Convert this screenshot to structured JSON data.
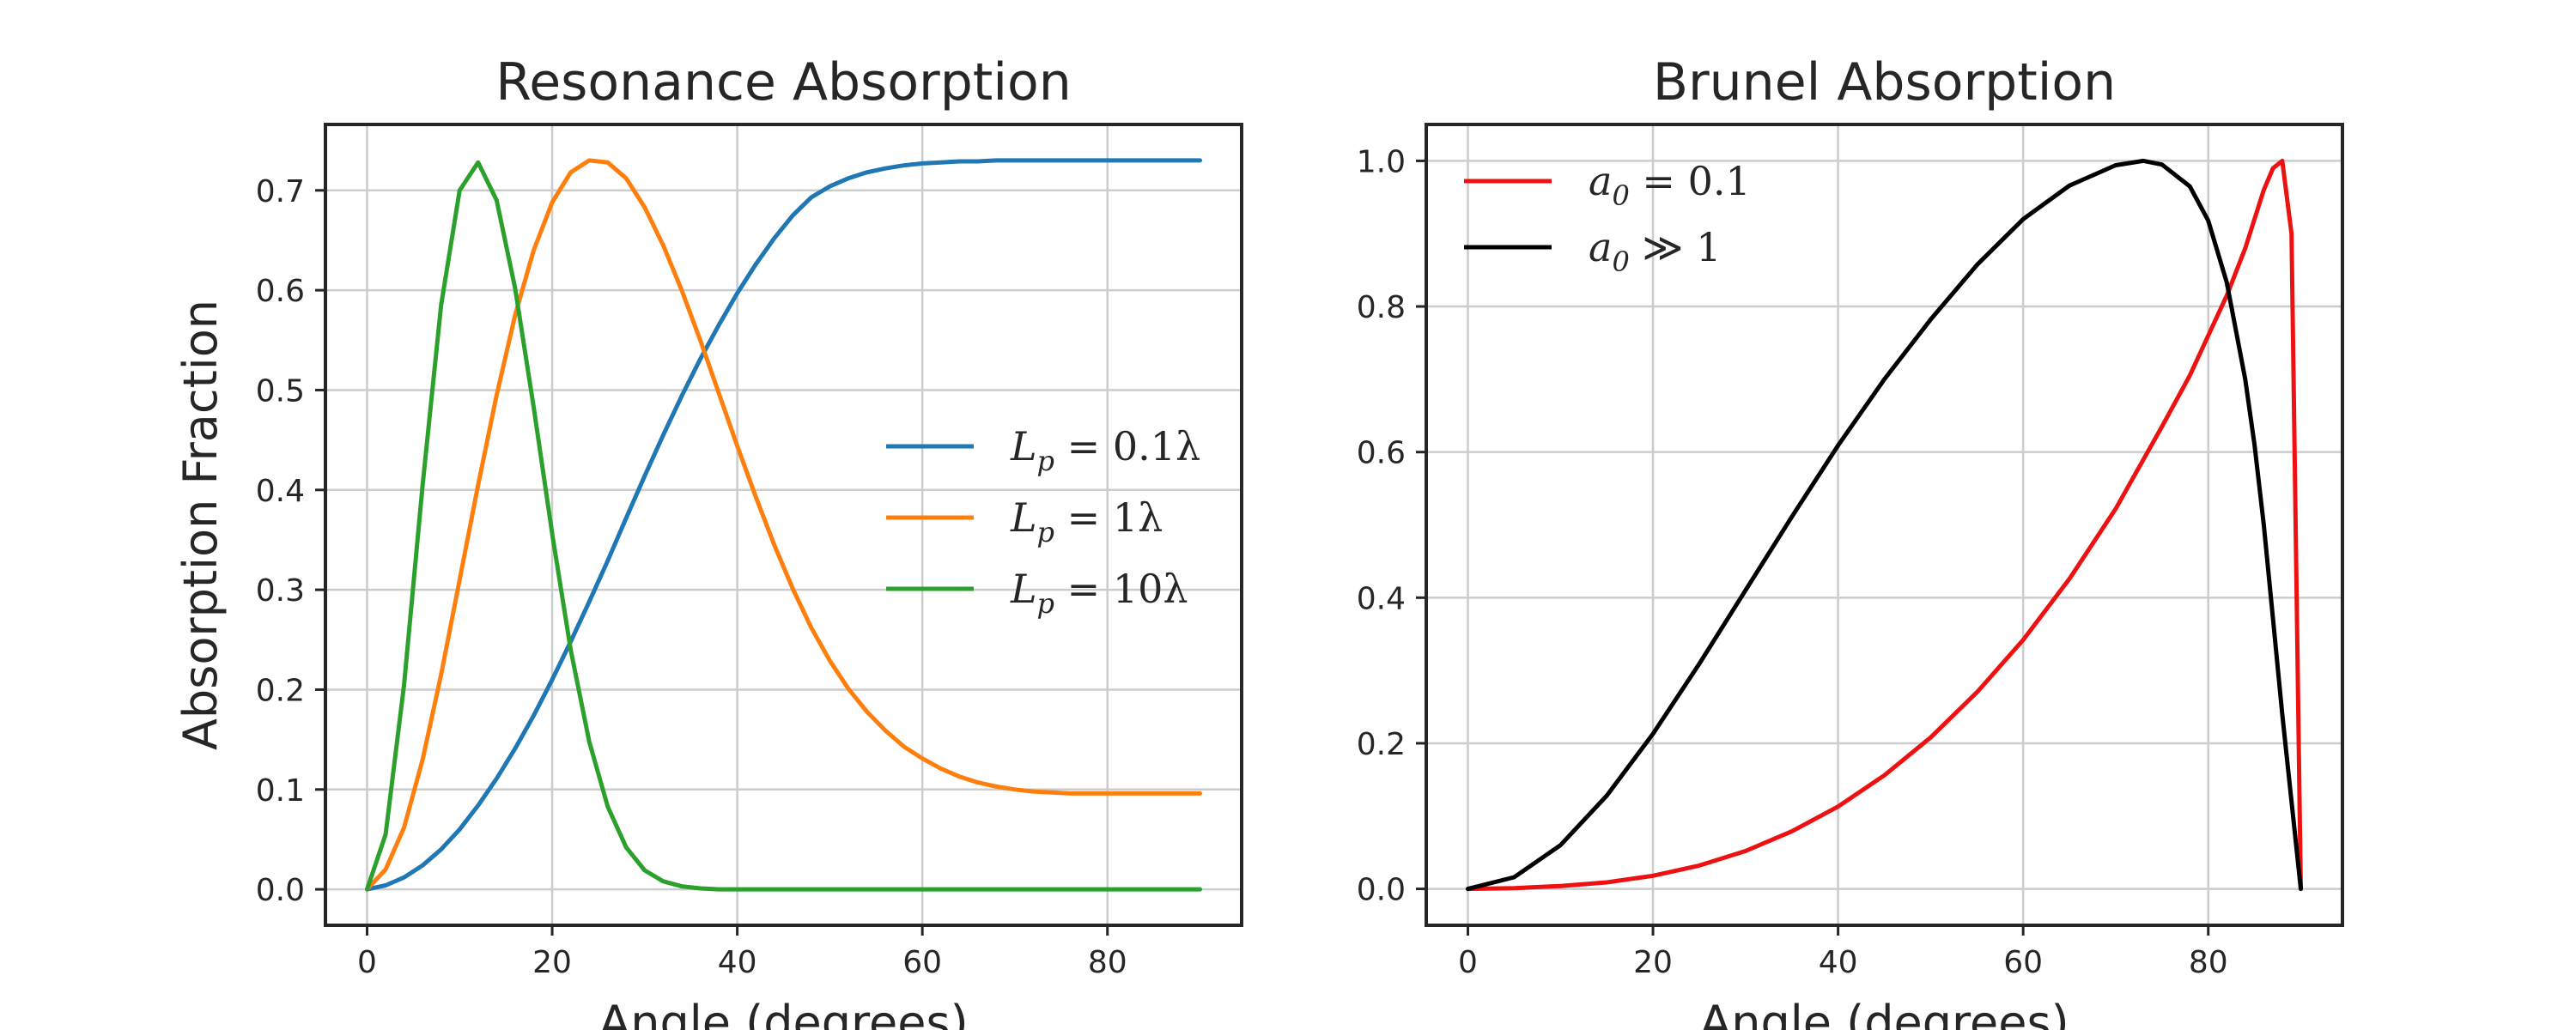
{
  "chart_data": [
    {
      "type": "line",
      "title": "Resonance Absorption",
      "xlabel": "Angle (degrees)",
      "ylabel": "Absorption Fraction",
      "xlim": [
        -4.5,
        94.5
      ],
      "ylim": [
        -0.036,
        0.766
      ],
      "xticks": [
        0,
        20,
        40,
        60,
        80
      ],
      "yticks": [
        0.0,
        0.1,
        0.2,
        0.3,
        0.4,
        0.5,
        0.6,
        0.7
      ],
      "xtick_labels": [
        "0",
        "20",
        "40",
        "60",
        "80"
      ],
      "ytick_labels": [
        "0.0",
        "0.1",
        "0.2",
        "0.3",
        "0.4",
        "0.5",
        "0.6",
        "0.7"
      ],
      "grid": true,
      "legend": "center-right",
      "x": [
        0,
        2,
        4,
        6,
        8,
        10,
        12,
        14,
        16,
        18,
        20,
        22,
        24,
        26,
        28,
        30,
        32,
        34,
        36,
        38,
        40,
        42,
        44,
        46,
        48,
        50,
        52,
        54,
        56,
        58,
        60,
        62,
        64,
        66,
        68,
        70,
        72,
        74,
        76,
        78,
        80,
        82,
        84,
        86,
        88,
        90
      ],
      "series": [
        {
          "name": "L_p = 0.1λ",
          "legend_label": "Lp = 0.1λ",
          "color": "#1f77b4",
          "values": [
            0.0,
            0.004,
            0.012,
            0.024,
            0.04,
            0.06,
            0.084,
            0.111,
            0.141,
            0.174,
            0.21,
            0.248,
            0.288,
            0.329,
            0.372,
            0.414,
            0.455,
            0.494,
            0.531,
            0.565,
            0.597,
            0.626,
            0.652,
            0.675,
            0.693,
            0.704,
            0.712,
            0.718,
            0.722,
            0.725,
            0.727,
            0.728,
            0.729,
            0.729,
            0.73,
            0.73,
            0.73,
            0.73,
            0.73,
            0.73,
            0.73,
            0.73,
            0.73,
            0.73,
            0.73,
            0.73
          ]
        },
        {
          "name": "L_p = 1λ",
          "legend_label": "Lp = 1λ",
          "color": "#ff7f0e",
          "values": [
            0.0,
            0.02,
            0.062,
            0.13,
            0.215,
            0.31,
            0.405,
            0.495,
            0.575,
            0.64,
            0.688,
            0.718,
            0.73,
            0.728,
            0.712,
            0.683,
            0.645,
            0.6,
            0.55,
            0.497,
            0.444,
            0.393,
            0.345,
            0.301,
            0.262,
            0.229,
            0.201,
            0.178,
            0.159,
            0.143,
            0.131,
            0.121,
            0.113,
            0.107,
            0.103,
            0.1,
            0.098,
            0.097,
            0.096,
            0.096,
            0.096,
            0.096,
            0.096,
            0.096,
            0.096,
            0.096
          ]
        },
        {
          "name": "L_p = 10λ",
          "legend_label": "Lp = 10λ",
          "color": "#2ca02c",
          "values": [
            0.0,
            0.055,
            0.205,
            0.405,
            0.585,
            0.7,
            0.728,
            0.69,
            0.602,
            0.483,
            0.356,
            0.24,
            0.148,
            0.083,
            0.042,
            0.019,
            0.008,
            0.003,
            0.001,
            0.0,
            0.0,
            0.0,
            0.0,
            0.0,
            0.0,
            0.0,
            0.0,
            0.0,
            0.0,
            0.0,
            0.0,
            0.0,
            0.0,
            0.0,
            0.0,
            0.0,
            0.0,
            0.0,
            0.0,
            0.0,
            0.0,
            0.0,
            0.0,
            0.0,
            0.0,
            0.0
          ]
        }
      ]
    },
    {
      "type": "line",
      "title": "Brunel Absorption",
      "xlabel": "Angle (degrees)",
      "ylabel": "",
      "xlim": [
        -4.5,
        94.5
      ],
      "ylim": [
        -0.05,
        1.05
      ],
      "xticks": [
        0,
        20,
        40,
        60,
        80
      ],
      "yticks": [
        0.0,
        0.2,
        0.4,
        0.6,
        0.8,
        1.0
      ],
      "xtick_labels": [
        "0",
        "20",
        "40",
        "60",
        "80"
      ],
      "ytick_labels": [
        "0.0",
        "0.2",
        "0.4",
        "0.6",
        "0.8",
        "1.0"
      ],
      "grid": true,
      "legend": "upper-left",
      "x": [
        0,
        5,
        10,
        15,
        20,
        25,
        30,
        35,
        40,
        45,
        50,
        55,
        60,
        65,
        70,
        73,
        75,
        78,
        80,
        82,
        84,
        85,
        86,
        87,
        88,
        89,
        90
      ],
      "series": [
        {
          "name": "a_0 = 0.1",
          "legend_label": "a0 = 0.1",
          "color": "#ee1111",
          "values": [
            0.0,
            0.001,
            0.004,
            0.009,
            0.018,
            0.032,
            0.052,
            0.079,
            0.113,
            0.156,
            0.208,
            0.27,
            0.342,
            0.426,
            0.522,
            0.59,
            0.635,
            0.705,
            0.76,
            0.815,
            0.88,
            0.92,
            0.96,
            0.99,
            1.0,
            0.9,
            0.0
          ]
        },
        {
          "name": "a_0 ≫ 1",
          "legend_label": "a0 ≫ 1",
          "color": "#000000",
          "values": [
            0.0,
            0.016,
            0.06,
            0.128,
            0.213,
            0.309,
            0.41,
            0.511,
            0.609,
            0.7,
            0.782,
            0.857,
            0.92,
            0.966,
            0.994,
            1.0,
            0.995,
            0.965,
            0.918,
            0.833,
            0.7,
            0.61,
            0.5,
            0.37,
            0.24,
            0.12,
            0.0
          ]
        }
      ]
    }
  ]
}
